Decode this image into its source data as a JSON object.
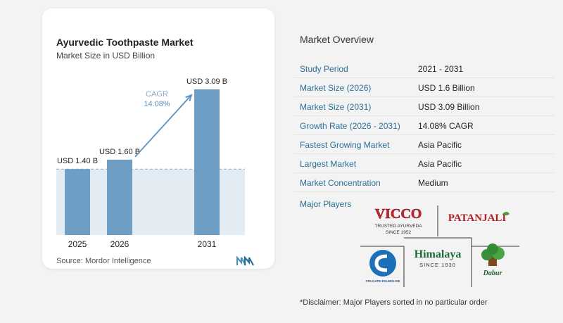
{
  "chart": {
    "title": "Ayurvedic Toothpaste Market",
    "subtitle": "Market Size in USD Billion",
    "source": "Source:  Mordor Intelligence",
    "cagr_label": "CAGR",
    "cagr_value": "14.08%"
  },
  "chart_data": {
    "type": "bar",
    "title": "Ayurvedic Toothpaste Market",
    "subtitle": "Market Size in USD Billion",
    "categories": [
      "2025",
      "2026",
      "2031"
    ],
    "values": [
      1.4,
      1.6,
      3.09
    ],
    "data_labels": [
      "USD 1.40 B",
      "USD 1.60 B",
      "USD 3.09 B"
    ],
    "units": "USD Billion",
    "ylim": [
      0,
      3.09
    ],
    "grid": false,
    "colors": {
      "bar": "#6f9ec4",
      "bar_top": "#5e8fb8",
      "shade": "#e3ebf3",
      "arrow": "#5a8fc0",
      "dashed": "#88a9c8"
    }
  },
  "overview": {
    "title": "Market Overview",
    "rows": [
      {
        "label": "Study Period",
        "value": "2021 - 2031"
      },
      {
        "label": "Market Size (2026)",
        "value": "USD 1.6 Billion"
      },
      {
        "label": "Market Size (2031)",
        "value": "USD 3.09 Billion"
      },
      {
        "label": "Growth Rate (2026 - 2031)",
        "value": "14.08% CAGR"
      },
      {
        "label": "Fastest Growing Market",
        "value": "Asia Pacific"
      },
      {
        "label": "Largest Market",
        "value": "Asia Pacific"
      },
      {
        "label": "Market Concentration",
        "value": "Medium"
      }
    ]
  },
  "players": {
    "title": "Major Players",
    "logos": [
      {
        "name": "VICCO",
        "tagline": "TRUSTED AYURVEDA",
        "since": "SINCE 1952"
      },
      {
        "name": "PATANJALI"
      },
      {
        "name": "COLGATE-PALMOLIVE"
      },
      {
        "name": "Himalaya",
        "since": "SINCE 1930"
      },
      {
        "name": "Dabur"
      }
    ],
    "disclaimer": "*Disclaimer: Major Players sorted in no particular order"
  },
  "colors": {
    "accent": "#2a6f96",
    "background": "#f3f3f4"
  }
}
